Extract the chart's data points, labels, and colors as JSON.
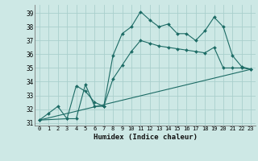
{
  "xlabel": "Humidex (Indice chaleur)",
  "xlim": [
    -0.5,
    23.5
  ],
  "ylim": [
    30.8,
    39.6
  ],
  "yticks": [
    31,
    32,
    33,
    34,
    35,
    36,
    37,
    38,
    39
  ],
  "xticks": [
    0,
    1,
    2,
    3,
    4,
    5,
    6,
    7,
    8,
    9,
    10,
    11,
    12,
    13,
    14,
    15,
    16,
    17,
    18,
    19,
    20,
    21,
    22,
    23
  ],
  "bg_color": "#cde8e5",
  "grid_color": "#aacfcc",
  "line_color": "#1c6b65",
  "line1_x": [
    0,
    1,
    2,
    3,
    4,
    5,
    6,
    7,
    8,
    9,
    10,
    11,
    12,
    13,
    14,
    15,
    16,
    17,
    18,
    19,
    20,
    21,
    22,
    23
  ],
  "line1_y": [
    31.2,
    31.7,
    32.2,
    31.3,
    31.3,
    33.8,
    32.2,
    32.2,
    35.9,
    37.5,
    38.0,
    39.1,
    38.5,
    38.0,
    38.2,
    37.5,
    37.5,
    37.0,
    37.7,
    38.7,
    38.0,
    35.9,
    35.1,
    34.9
  ],
  "line2_x": [
    0,
    3,
    4,
    5,
    6,
    7,
    8,
    9,
    10,
    11,
    12,
    13,
    14,
    15,
    16,
    17,
    18,
    19,
    20,
    21,
    22,
    23
  ],
  "line2_y": [
    31.2,
    31.3,
    33.7,
    33.3,
    32.5,
    32.2,
    34.2,
    35.2,
    36.2,
    37.0,
    36.8,
    36.6,
    36.5,
    36.4,
    36.3,
    36.2,
    36.1,
    36.5,
    35.0,
    35.0,
    35.0,
    34.9
  ],
  "line3_x": [
    0,
    23
  ],
  "line3_y": [
    31.2,
    34.9
  ]
}
